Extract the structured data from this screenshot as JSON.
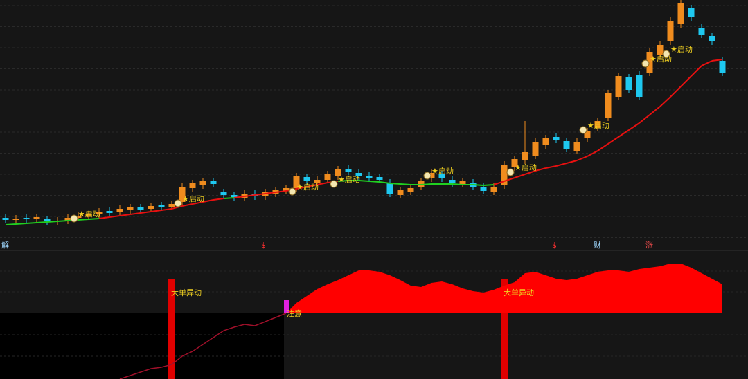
{
  "chart_data": [
    {
      "type": "candlestick",
      "ylim": [
        0,
        350
      ],
      "up_color": "#f08c1e",
      "down_color": "#1ec8f0",
      "open": [
        35,
        32,
        35,
        33,
        33,
        30,
        31,
        35,
        37,
        40,
        45,
        44,
        46,
        50,
        48,
        53,
        51,
        58,
        78,
        82,
        88,
        72,
        68,
        64,
        70,
        66,
        70,
        74,
        78,
        94,
        86,
        90,
        95,
        106,
        100,
        96,
        94,
        86,
        68,
        73,
        80,
        92,
        98,
        90,
        84,
        86,
        80,
        73,
        82,
        108,
        118,
        125,
        140,
        152,
        146,
        132,
        150,
        165,
        180,
        210,
        238,
        242,
        245,
        270,
        290,
        315,
        338,
        310,
        298,
        262
      ],
      "high": [
        40,
        39,
        40,
        41,
        38,
        36,
        40,
        43,
        45,
        49,
        50,
        53,
        55,
        55,
        57,
        58,
        60,
        85,
        90,
        93,
        93,
        77,
        73,
        75,
        75,
        77,
        80,
        83,
        100,
        99,
        95,
        103,
        110,
        111,
        105,
        101,
        99,
        91,
        80,
        83,
        93,
        105,
        103,
        95,
        93,
        91,
        85,
        85,
        117,
        125,
        175,
        150,
        155,
        157,
        151,
        150,
        165,
        180,
        220,
        245,
        243,
        247,
        280,
        290,
        325,
        350,
        343,
        315,
        303,
        267
      ],
      "low": [
        27,
        27,
        28,
        28,
        25,
        25,
        26,
        30,
        32,
        35,
        37,
        39,
        41,
        42,
        43,
        45,
        46,
        53,
        73,
        77,
        79,
        63,
        60,
        59,
        61,
        61,
        65,
        69,
        73,
        83,
        81,
        85,
        90,
        97,
        90,
        87,
        85,
        65,
        63,
        68,
        75,
        87,
        87,
        80,
        79,
        75,
        69,
        68,
        77,
        103,
        113,
        120,
        135,
        143,
        130,
        127,
        145,
        160,
        175,
        205,
        215,
        205,
        240,
        265,
        285,
        310,
        320,
        295,
        285,
        240
      ],
      "close": [
        32,
        34,
        33,
        36,
        30,
        31,
        35,
        38,
        40,
        44,
        42,
        48,
        50,
        47,
        52,
        50,
        55,
        80,
        85,
        88,
        84,
        68,
        65,
        70,
        66,
        72,
        75,
        78,
        95,
        88,
        90,
        98,
        105,
        102,
        95,
        92,
        90,
        70,
        75,
        78,
        88,
        100,
        92,
        85,
        88,
        80,
        74,
        80,
        112,
        120,
        130,
        145,
        150,
        148,
        135,
        145,
        160,
        175,
        215,
        240,
        220,
        210,
        275,
        285,
        320,
        345,
        325,
        300,
        290,
        245
      ],
      "ma": {
        "rise_color": "#e81010",
        "flat_color": "#20d020",
        "values": [
          25,
          26,
          27,
          28,
          29,
          30,
          31,
          32,
          33,
          34,
          36,
          38,
          40,
          42,
          44,
          46,
          48,
          52,
          55,
          58,
          61,
          63,
          64,
          66,
          68,
          70,
          72,
          74,
          77,
          80,
          83,
          86,
          88,
          89,
          89,
          88,
          87,
          85,
          84,
          83,
          83,
          84,
          84,
          84,
          83,
          83,
          82,
          83,
          88,
          93,
          98,
          103,
          107,
          110,
          114,
          118,
          124,
          132,
          142,
          152,
          162,
          172,
          184,
          196,
          210,
          225,
          240,
          255,
          262,
          264
        ]
      },
      "annotations": [
        {
          "text": "★启动",
          "x": 7,
          "y": 40
        },
        {
          "text": "★启动",
          "x": 17,
          "y": 62
        },
        {
          "text": "★启动",
          "x": 28,
          "y": 79
        },
        {
          "text": "★启动",
          "x": 32,
          "y": 90
        },
        {
          "text": "★启动",
          "x": 41,
          "y": 102
        },
        {
          "text": "★启动",
          "x": 49,
          "y": 107
        },
        {
          "text": "★启动",
          "x": 56,
          "y": 168
        },
        {
          "text": "★启动",
          "x": 62,
          "y": 264
        },
        {
          "text": "★启动",
          "x": 64,
          "y": 278
        }
      ],
      "signals": [
        {
          "text": "解",
          "x": 0,
          "color": "#9fd8ff"
        },
        {
          "text": "$",
          "x": 25,
          "color": "#ff3030"
        },
        {
          "text": "$",
          "x": 53,
          "color": "#ff3030"
        },
        {
          "text": "财",
          "x": 57,
          "color": "#9fd8ff"
        },
        {
          "text": "涨",
          "x": 62,
          "color": "#ff5050"
        }
      ]
    },
    {
      "type": "area",
      "ylim": [
        -95,
        91
      ],
      "series": [
        {
          "color": "#ff0000",
          "values": [
            null,
            null,
            null,
            null,
            null,
            null,
            null,
            null,
            null,
            null,
            null,
            null,
            null,
            null,
            null,
            null,
            null,
            null,
            null,
            null,
            null,
            null,
            null,
            null,
            null,
            null,
            null,
            0,
            15,
            25,
            35,
            42,
            48,
            55,
            62,
            62,
            60,
            55,
            48,
            40,
            38,
            44,
            46,
            42,
            36,
            32,
            30,
            34,
            40,
            45,
            58,
            60,
            55,
            50,
            48,
            50,
            55,
            60,
            62,
            62,
            60,
            64,
            66,
            68,
            72,
            72,
            66,
            58,
            50,
            42
          ]
        },
        {
          "color": "#a0102a",
          "values": [
            null,
            null,
            null,
            null,
            null,
            null,
            null,
            null,
            null,
            null,
            null,
            -95,
            -90,
            -85,
            -80,
            -78,
            -74,
            -62,
            -55,
            -45,
            -35,
            -25,
            -20,
            -16,
            -18,
            -12,
            -6,
            0,
            null,
            null,
            null,
            null,
            null,
            null,
            null,
            null,
            null,
            null,
            null,
            null,
            null,
            null,
            null,
            null,
            null,
            null,
            null,
            null,
            null,
            null,
            null,
            null,
            null,
            null,
            null,
            null,
            null,
            null,
            null,
            null,
            null,
            null,
            null,
            null,
            null,
            null,
            null,
            null,
            null,
            null
          ]
        }
      ],
      "events": [
        {
          "text": "大单异动",
          "x": 16,
          "color": "#e00000"
        },
        {
          "text": "大单异动",
          "x": 48,
          "color": "#e00000"
        }
      ],
      "notice": {
        "text": "注意",
        "x": 27,
        "value": 19,
        "color": "#e020e0"
      }
    }
  ]
}
